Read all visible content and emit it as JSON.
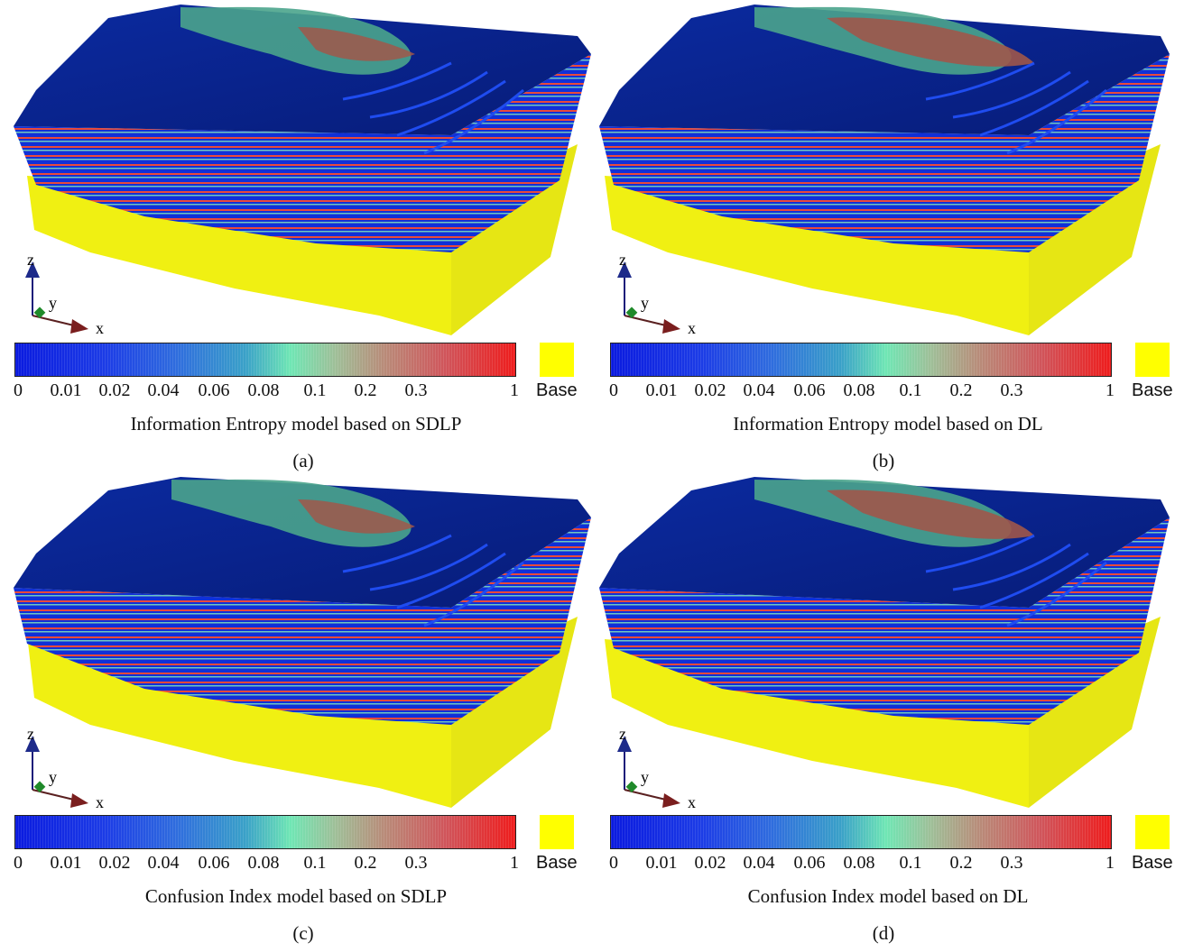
{
  "axes": {
    "z": "z",
    "y": "y",
    "x": "x"
  },
  "colorbar": {
    "ticks": [
      "0",
      "0.01",
      "0.02",
      "0.04",
      "0.06",
      "0.08",
      "0.1",
      "0.2",
      "0.3",
      "1"
    ],
    "base_label": "Base",
    "colors": [
      "#0a1adf",
      "#2f6cde",
      "#6fe6b4",
      "#b98a78",
      "#ee1c1c"
    ],
    "base_color": "#ffff00"
  },
  "panels": [
    {
      "caption": "Information Entropy model based on SDLP",
      "label": "(a)"
    },
    {
      "caption": "Information Entropy model based on DL",
      "label": "(b)"
    },
    {
      "caption": "Confusion Index model based on SDLP",
      "label": "(c)"
    },
    {
      "caption": "Confusion Index model based on DL",
      "label": "(d)"
    }
  ]
}
